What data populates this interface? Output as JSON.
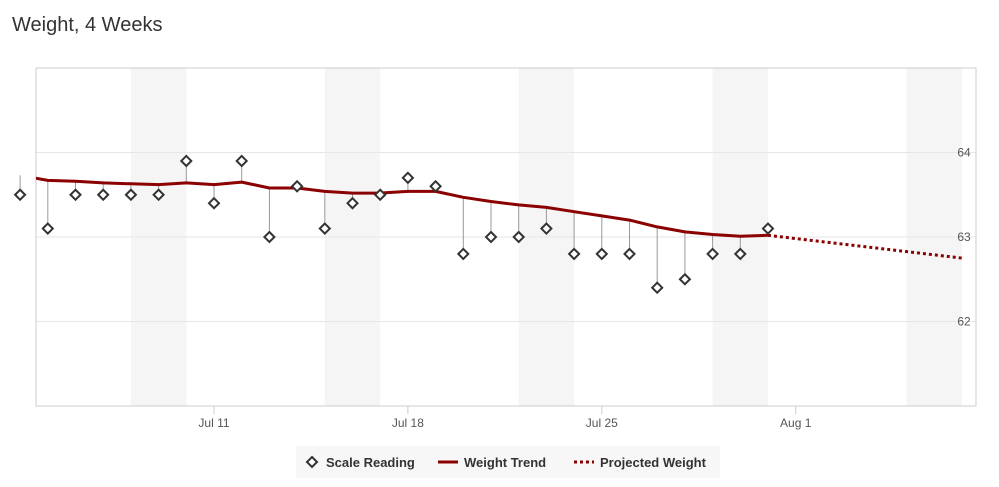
{
  "chart_data": {
    "type": "line",
    "title": "Weight, 4 Weeks",
    "xlabel": "",
    "ylabel": "",
    "x_axis": {
      "kind": "date",
      "start": "2025-07-04",
      "end": "2025-08-07",
      "tick_labels": [
        {
          "label": "Jul 11",
          "date": "2025-07-11"
        },
        {
          "label": "Jul 18",
          "date": "2025-07-18"
        },
        {
          "label": "Jul 25",
          "date": "2025-07-25"
        },
        {
          "label": "Aug 1",
          "date": "2025-08-01"
        }
      ]
    },
    "y_axis": {
      "min": 61,
      "max": 65,
      "tick_values": [
        62,
        63,
        64
      ],
      "side": "right"
    },
    "weekend_bands": [
      {
        "start": "2025-07-08",
        "end": "2025-07-10"
      },
      {
        "start": "2025-07-15",
        "end": "2025-07-17"
      },
      {
        "start": "2025-07-22",
        "end": "2025-07-24"
      },
      {
        "start": "2025-07-29",
        "end": "2025-07-31"
      },
      {
        "start": "2025-08-05",
        "end": "2025-08-07"
      }
    ],
    "grid": true,
    "legend_position": "bottom-center",
    "series": [
      {
        "name": "Scale Reading",
        "kind": "scatter",
        "marker": "diamond",
        "color": "#333333",
        "points": [
          {
            "x": "2025-07-04",
            "y": 63.5
          },
          {
            "x": "2025-07-05",
            "y": 63.1
          },
          {
            "x": "2025-07-06",
            "y": 63.5
          },
          {
            "x": "2025-07-07",
            "y": 63.5
          },
          {
            "x": "2025-07-08",
            "y": 63.5
          },
          {
            "x": "2025-07-09",
            "y": 63.5
          },
          {
            "x": "2025-07-10",
            "y": 63.9
          },
          {
            "x": "2025-07-11",
            "y": 63.4
          },
          {
            "x": "2025-07-12",
            "y": 63.9
          },
          {
            "x": "2025-07-13",
            "y": 63.0
          },
          {
            "x": "2025-07-14",
            "y": 63.6
          },
          {
            "x": "2025-07-15",
            "y": 63.1
          },
          {
            "x": "2025-07-16",
            "y": 63.4
          },
          {
            "x": "2025-07-17",
            "y": 63.5
          },
          {
            "x": "2025-07-18",
            "y": 63.7
          },
          {
            "x": "2025-07-19",
            "y": 63.6
          },
          {
            "x": "2025-07-20",
            "y": 62.8
          },
          {
            "x": "2025-07-21",
            "y": 63.0
          },
          {
            "x": "2025-07-22",
            "y": 63.0
          },
          {
            "x": "2025-07-23",
            "y": 63.1
          },
          {
            "x": "2025-07-24",
            "y": 62.8
          },
          {
            "x": "2025-07-25",
            "y": 62.8
          },
          {
            "x": "2025-07-26",
            "y": 62.8
          },
          {
            "x": "2025-07-27",
            "y": 62.4
          },
          {
            "x": "2025-07-28",
            "y": 62.5
          },
          {
            "x": "2025-07-29",
            "y": 62.8
          },
          {
            "x": "2025-07-30",
            "y": 62.8
          },
          {
            "x": "2025-07-31",
            "y": 63.1
          }
        ]
      },
      {
        "name": "Weight Trend",
        "kind": "line",
        "color": "#8b0000",
        "style": "solid",
        "points": [
          {
            "x": "2025-07-03",
            "y": 63.75
          },
          {
            "x": "2025-07-04",
            "y": 63.73
          },
          {
            "x": "2025-07-05",
            "y": 63.67
          },
          {
            "x": "2025-07-06",
            "y": 63.66
          },
          {
            "x": "2025-07-07",
            "y": 63.64
          },
          {
            "x": "2025-07-08",
            "y": 63.63
          },
          {
            "x": "2025-07-09",
            "y": 63.62
          },
          {
            "x": "2025-07-10",
            "y": 63.64
          },
          {
            "x": "2025-07-11",
            "y": 63.62
          },
          {
            "x": "2025-07-12",
            "y": 63.65
          },
          {
            "x": "2025-07-13",
            "y": 63.58
          },
          {
            "x": "2025-07-14",
            "y": 63.58
          },
          {
            "x": "2025-07-15",
            "y": 63.54
          },
          {
            "x": "2025-07-16",
            "y": 63.52
          },
          {
            "x": "2025-07-17",
            "y": 63.52
          },
          {
            "x": "2025-07-18",
            "y": 63.54
          },
          {
            "x": "2025-07-19",
            "y": 63.54
          },
          {
            "x": "2025-07-20",
            "y": 63.47
          },
          {
            "x": "2025-07-21",
            "y": 63.42
          },
          {
            "x": "2025-07-22",
            "y": 63.38
          },
          {
            "x": "2025-07-23",
            "y": 63.35
          },
          {
            "x": "2025-07-24",
            "y": 63.3
          },
          {
            "x": "2025-07-25",
            "y": 63.25
          },
          {
            "x": "2025-07-26",
            "y": 63.2
          },
          {
            "x": "2025-07-27",
            "y": 63.12
          },
          {
            "x": "2025-07-28",
            "y": 63.06
          },
          {
            "x": "2025-07-29",
            "y": 63.03
          },
          {
            "x": "2025-07-30",
            "y": 63.01
          },
          {
            "x": "2025-07-31",
            "y": 63.02
          }
        ]
      },
      {
        "name": "Projected Weight",
        "kind": "line",
        "color": "#8b0000",
        "style": "dotted",
        "points": [
          {
            "x": "2025-07-31",
            "y": 63.02
          },
          {
            "x": "2025-08-07",
            "y": 62.75
          }
        ]
      }
    ]
  }
}
